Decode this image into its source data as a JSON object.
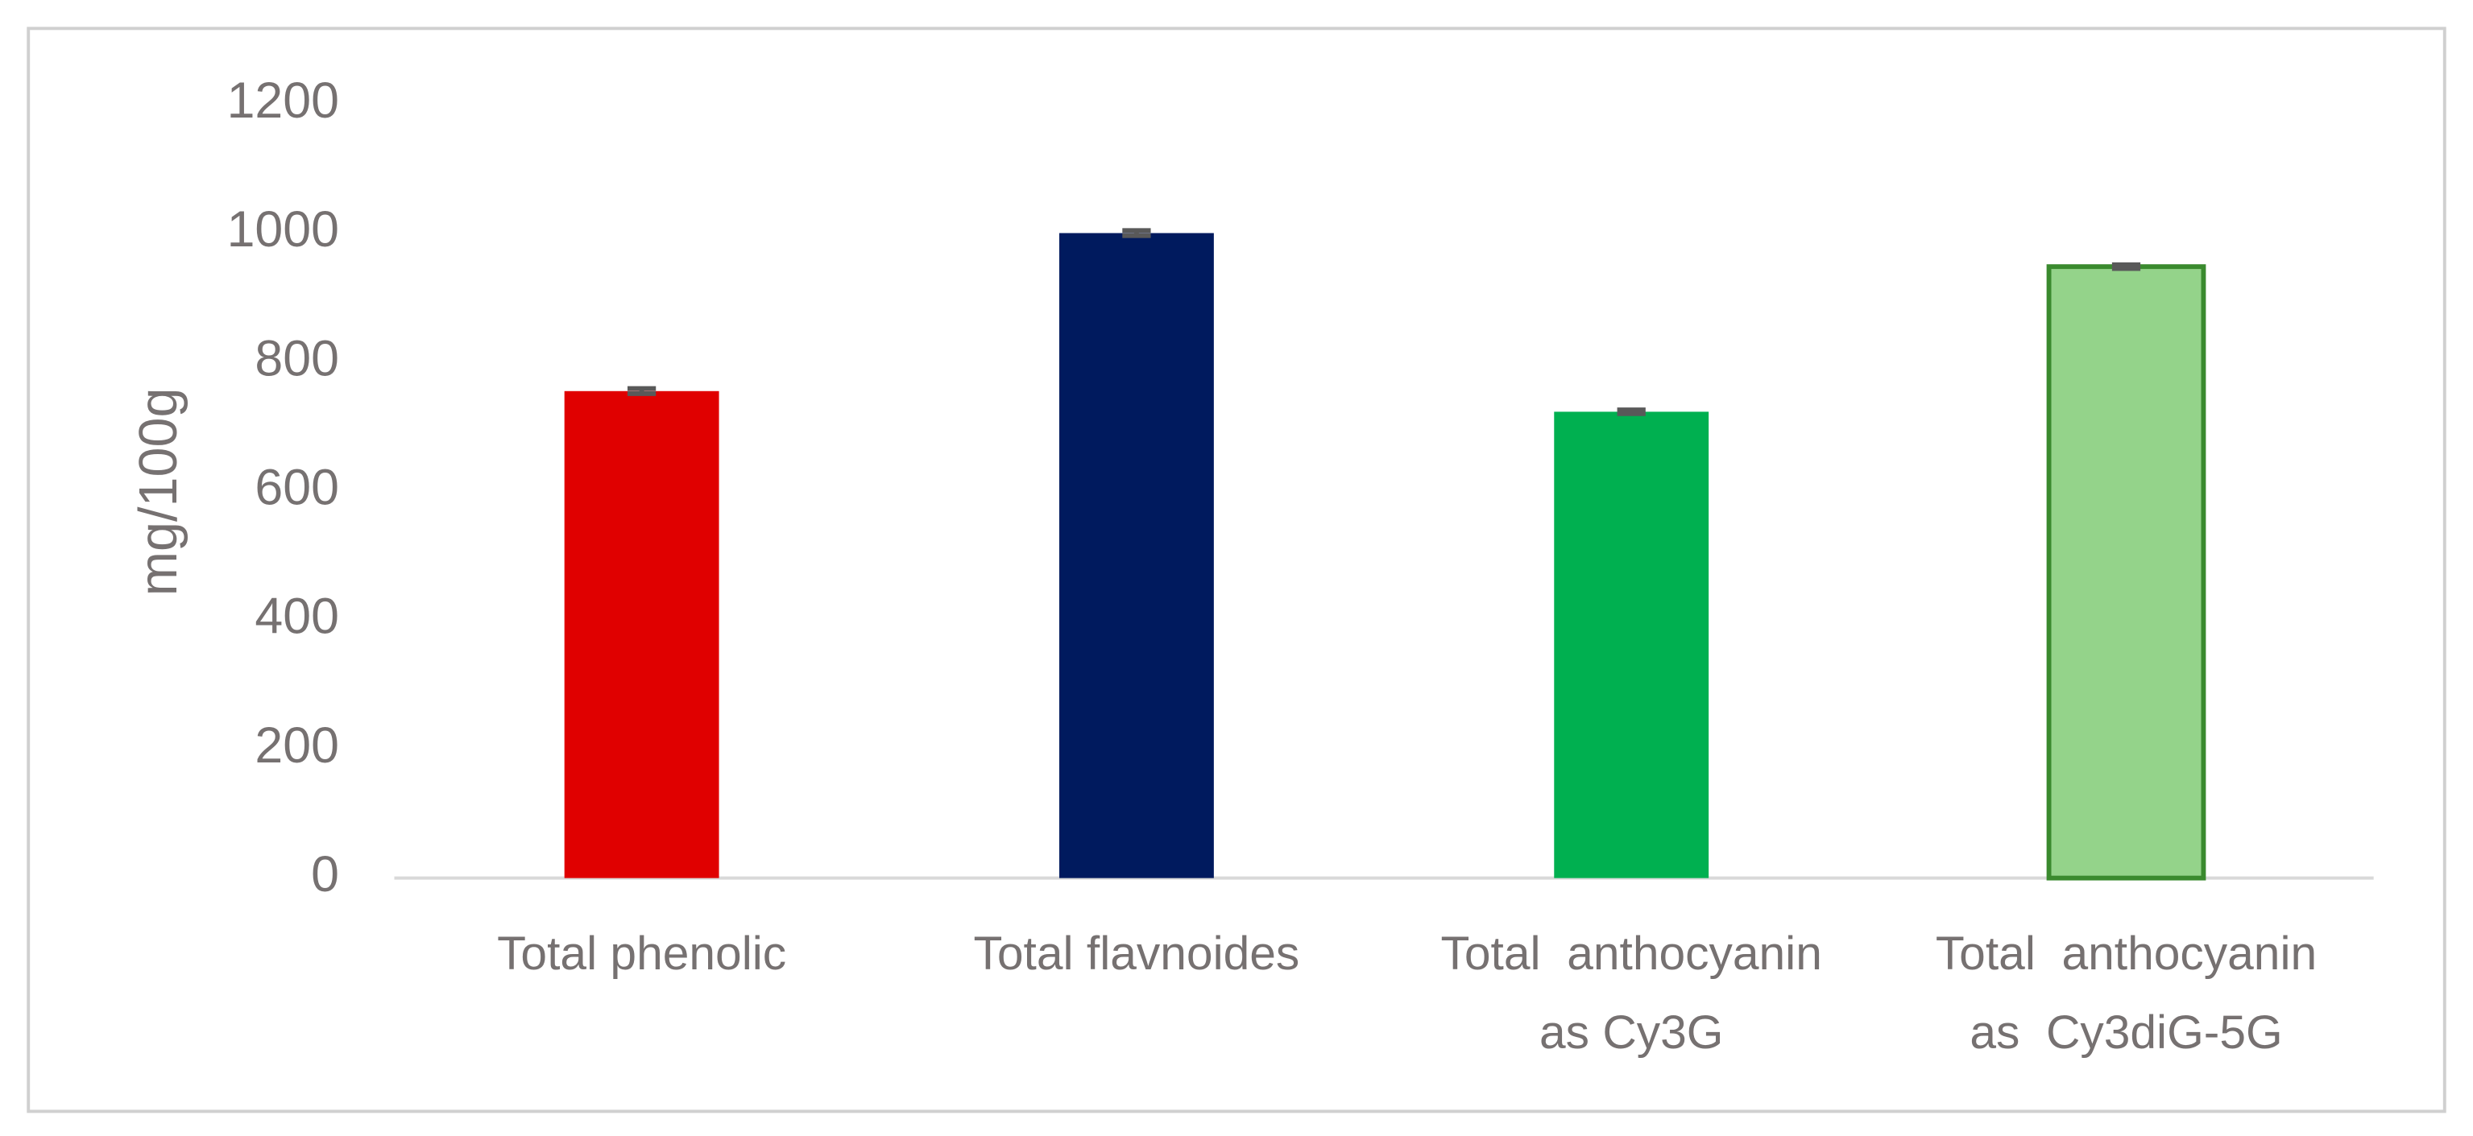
{
  "chart_data": {
    "type": "bar",
    "y_label": "mg/100g",
    "categories": [
      [
        "Total phenolic"
      ],
      [
        "Total flavnoides"
      ],
      [
        "Total  anthocyanin",
        "as Cy3G"
      ],
      [
        "Total  anthocyanin",
        "as  Cy3diG-5G"
      ]
    ],
    "values": [
      755,
      1000,
      723,
      948
    ],
    "errors": [
      4,
      4,
      3,
      3
    ],
    "colors": [
      "#e00000",
      "#001a5e",
      "#00b050",
      "#94d38a"
    ],
    "edge_colors": [
      null,
      null,
      null,
      "#3a8a2e"
    ],
    "error_color": "#595959",
    "ylim": [
      0,
      1200
    ],
    "yticks": [
      0,
      200,
      400,
      600,
      800,
      1000,
      1200
    ],
    "grid": false
  }
}
